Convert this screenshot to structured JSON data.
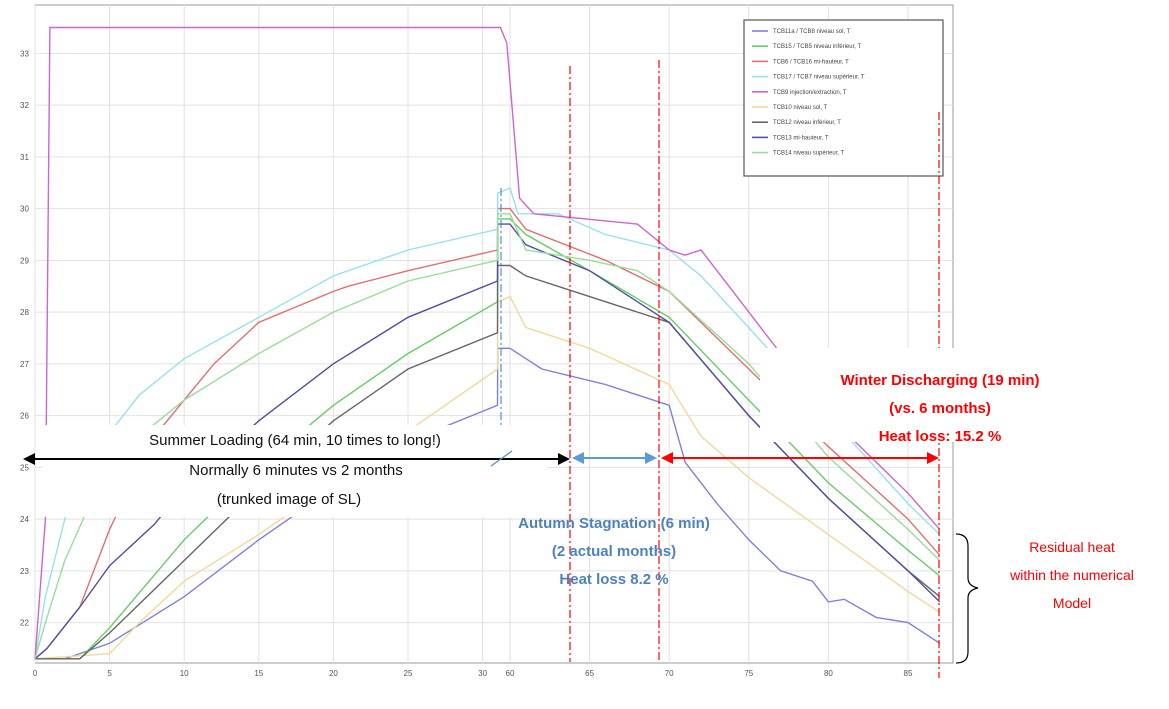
{
  "chart_data": {
    "type": "line",
    "title": "",
    "xlabel": "",
    "ylabel": "",
    "x_ticks": [
      "0",
      "5",
      "10",
      "15",
      "20",
      "25",
      "30",
      "60",
      "65",
      "70",
      "75",
      "80",
      "85"
    ],
    "y_ticks": [
      "22",
      "23",
      "24",
      "25",
      "26",
      "27",
      "28",
      "29",
      "30",
      "31",
      "32",
      "33"
    ],
    "ylim": [
      21.2,
      33.9
    ],
    "grid": true,
    "legend_position": "top-right",
    "series": [
      {
        "name": "TCB11a / TCB8 niveau sol, T",
        "color": "#8080d8",
        "points": [
          [
            0,
            21.3
          ],
          [
            2,
            21.3
          ],
          [
            5,
            21.6
          ],
          [
            10,
            22.5
          ],
          [
            15,
            23.6
          ],
          [
            20,
            24.6
          ],
          [
            25,
            25.5
          ],
          [
            31,
            26.2
          ],
          [
            31.01,
            27.3
          ],
          [
            60,
            27.3
          ],
          [
            62,
            26.9
          ],
          [
            66,
            26.6
          ],
          [
            70,
            26.2
          ],
          [
            71,
            25.1
          ],
          [
            73,
            24.3
          ],
          [
            75,
            23.6
          ],
          [
            77,
            23.0
          ],
          [
            79,
            22.8
          ],
          [
            80,
            22.4
          ],
          [
            81,
            22.45
          ],
          [
            83,
            22.1
          ],
          [
            85,
            22.0
          ],
          [
            87,
            21.6
          ]
        ]
      },
      {
        "name": "TCB15 / TCB5 niveau inférieur, T",
        "color": "#66cc66",
        "points": [
          [
            0,
            21.3
          ],
          [
            3,
            21.3
          ],
          [
            5,
            21.9
          ],
          [
            10,
            23.6
          ],
          [
            15,
            25.0
          ],
          [
            20,
            26.2
          ],
          [
            25,
            27.2
          ],
          [
            31,
            28.2
          ],
          [
            31.01,
            29.8
          ],
          [
            60,
            29.8
          ],
          [
            61,
            29.5
          ],
          [
            65,
            28.8
          ],
          [
            70,
            27.9
          ],
          [
            75,
            26.3
          ],
          [
            80,
            24.7
          ],
          [
            85,
            23.4
          ],
          [
            87,
            22.9
          ]
        ]
      },
      {
        "name": "TCB6 / TCB16 mi-hauteur, T",
        "color": "#e07070",
        "points": [
          [
            0,
            21.3
          ],
          [
            0.8,
            21.5
          ],
          [
            3,
            22.3
          ],
          [
            5,
            23.8
          ],
          [
            8,
            25.6
          ],
          [
            12,
            27.0
          ],
          [
            15,
            27.8
          ],
          [
            20,
            28.4
          ],
          [
            21,
            28.5
          ],
          [
            25,
            28.8
          ],
          [
            31,
            29.2
          ],
          [
            31.01,
            30.0
          ],
          [
            60,
            30.0
          ],
          [
            61,
            29.6
          ],
          [
            66,
            29.0
          ],
          [
            70,
            28.4
          ],
          [
            73,
            27.5
          ],
          [
            76,
            26.6
          ],
          [
            80,
            25.4
          ],
          [
            85,
            24.0
          ],
          [
            87,
            23.3
          ]
        ]
      },
      {
        "name": "TCB17 / TCB7 niveau supérieur, T",
        "color": "#99e0ee",
        "points": [
          [
            0,
            21.3
          ],
          [
            0.7,
            22.5
          ],
          [
            2,
            24.0
          ],
          [
            4,
            25.3
          ],
          [
            7,
            26.4
          ],
          [
            10,
            27.1
          ],
          [
            15,
            27.9
          ],
          [
            20,
            28.7
          ],
          [
            25,
            29.2
          ],
          [
            31,
            29.6
          ],
          [
            31.01,
            30.3
          ],
          [
            60,
            30.4
          ],
          [
            60.5,
            29.9
          ],
          [
            63,
            29.9
          ],
          [
            66,
            29.5
          ],
          [
            70,
            29.2
          ],
          [
            72,
            28.7
          ],
          [
            75,
            27.7
          ],
          [
            80,
            26.0
          ],
          [
            85,
            24.3
          ],
          [
            87,
            23.7
          ]
        ]
      },
      {
        "name": "TCB9 injection/extraction, T",
        "color": "#cc66cc",
        "points": [
          [
            0,
            21.3
          ],
          [
            0.7,
            24.0
          ],
          [
            1,
            33.5
          ],
          [
            59.4,
            33.5
          ],
          [
            59.8,
            33.2
          ],
          [
            60.6,
            30.2
          ],
          [
            61.5,
            29.9
          ],
          [
            68,
            29.7
          ],
          [
            70,
            29.2
          ],
          [
            71,
            29.1
          ],
          [
            72,
            29.2
          ],
          [
            73,
            28.8
          ],
          [
            75,
            28.0
          ],
          [
            80,
            26.0
          ],
          [
            85,
            24.5
          ],
          [
            87,
            23.8
          ]
        ]
      },
      {
        "name": "TCB10 niveau sol, T",
        "color": "#f2d89a",
        "points": [
          [
            0,
            21.3
          ],
          [
            5,
            21.4
          ],
          [
            7,
            22.0
          ],
          [
            10,
            22.8
          ],
          [
            15,
            23.7
          ],
          [
            20,
            24.7
          ],
          [
            25,
            25.7
          ],
          [
            31,
            26.9
          ],
          [
            31.01,
            28.2
          ],
          [
            60,
            28.3
          ],
          [
            61,
            27.7
          ],
          [
            65,
            27.3
          ],
          [
            70,
            26.6
          ],
          [
            72,
            25.6
          ],
          [
            75,
            24.8
          ],
          [
            80,
            23.7
          ],
          [
            85,
            22.6
          ],
          [
            87,
            22.2
          ]
        ]
      },
      {
        "name": "TCB12 niveau inférieur, T",
        "color": "#666666",
        "points": [
          [
            0,
            21.3
          ],
          [
            3,
            21.3
          ],
          [
            5,
            21.8
          ],
          [
            10,
            23.2
          ],
          [
            15,
            24.6
          ],
          [
            20,
            25.9
          ],
          [
            25,
            26.9
          ],
          [
            31,
            27.6
          ],
          [
            31.01,
            28.9
          ],
          [
            60,
            28.9
          ],
          [
            61,
            28.7
          ],
          [
            65,
            28.3
          ],
          [
            70,
            27.8
          ],
          [
            75,
            26.0
          ],
          [
            80,
            24.4
          ],
          [
            85,
            23.0
          ],
          [
            87,
            22.5
          ]
        ]
      },
      {
        "name": "TCB13 mi-hauteur, T",
        "color": "#5050a0",
        "points": [
          [
            0,
            21.3
          ],
          [
            0.8,
            21.5
          ],
          [
            3,
            22.3
          ],
          [
            5,
            23.1
          ],
          [
            8,
            23.9
          ],
          [
            10,
            24.6
          ],
          [
            15,
            25.9
          ],
          [
            20,
            27.0
          ],
          [
            25,
            27.9
          ],
          [
            31,
            28.6
          ],
          [
            31.01,
            29.7
          ],
          [
            60,
            29.7
          ],
          [
            61,
            29.3
          ],
          [
            65,
            28.8
          ],
          [
            70,
            27.8
          ],
          [
            75,
            26.0
          ],
          [
            80,
            24.4
          ],
          [
            85,
            23.0
          ],
          [
            87,
            22.4
          ]
        ]
      },
      {
        "name": "TCB14 niveau supérieur, T",
        "color": "#99dd99",
        "points": [
          [
            0,
            21.3
          ],
          [
            0.7,
            22.0
          ],
          [
            2,
            23.2
          ],
          [
            4,
            24.5
          ],
          [
            7,
            25.6
          ],
          [
            10,
            26.3
          ],
          [
            15,
            27.2
          ],
          [
            20,
            28.0
          ],
          [
            25,
            28.6
          ],
          [
            31,
            29.0
          ],
          [
            31.01,
            29.9
          ],
          [
            60,
            29.9
          ],
          [
            61,
            29.2
          ],
          [
            65,
            29.0
          ],
          [
            68,
            28.8
          ],
          [
            70,
            28.4
          ],
          [
            75,
            27.0
          ],
          [
            80,
            25.2
          ],
          [
            85,
            23.8
          ],
          [
            87,
            23.2
          ]
        ]
      }
    ]
  },
  "annotations": {
    "summer": {
      "line1": "Summer Loading (64 min, 10 times to long!)",
      "line2": "Normally 6 minutes vs 2 months",
      "line3": "(trunked image of SL)"
    },
    "autumn": {
      "line1": "Autumn Stagnation (6 min)",
      "line2": "(2 actual months)",
      "line3": "Heat loss 8.2 %"
    },
    "winter": {
      "line1": "Winter Discharging (19 min)",
      "line2": "(vs. 6 months)",
      "line3": "Heat loss: 15.2 %"
    },
    "residual": {
      "line1": "Residual heat",
      "line2": "within the numerical",
      "line3": "Model"
    }
  },
  "colors": {
    "black_arrow": "#000000",
    "blue_arrow": "#5b9bd5",
    "red_arrow": "#ff0000",
    "blue_divider": "#4f8fcf",
    "red_divider": "#ff0000"
  }
}
